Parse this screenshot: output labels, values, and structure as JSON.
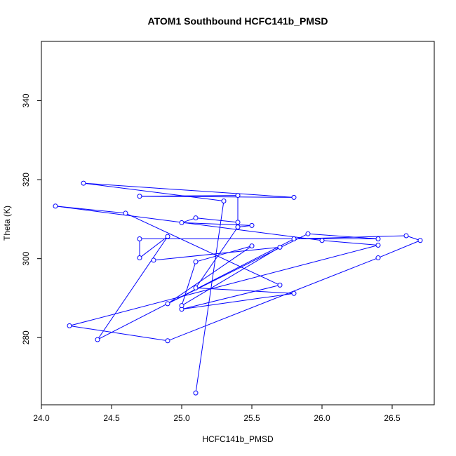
{
  "chart_data": {
    "type": "line",
    "title": "ATOM1 Southbound HCFC141b_PMSD",
    "xlabel": "HCFC141b_PMSD",
    "ylabel": "Theta (K)",
    "xlim": [
      24.0,
      26.8
    ],
    "ylim": [
      263.0,
      355.0
    ],
    "x_ticks": [
      24.0,
      24.5,
      25.0,
      25.5,
      26.0,
      26.5
    ],
    "x_tick_labels": [
      "24.0",
      "24.5",
      "25.0",
      "25.5",
      "26.0",
      "26.5"
    ],
    "y_ticks": [
      280,
      300,
      320,
      340
    ],
    "y_tick_labels": [
      "280",
      "300",
      "320",
      "340"
    ],
    "grid": false,
    "color": "#0000ff",
    "marker": "open-circle",
    "points": [
      {
        "x": 25.1,
        "y": 266.0
      },
      {
        "x": 25.3,
        "y": 314.6
      },
      {
        "x": 24.3,
        "y": 319.1
      },
      {
        "x": 25.8,
        "y": 315.5
      },
      {
        "x": 24.7,
        "y": 315.8
      },
      {
        "x": 25.4,
        "y": 316.0
      },
      {
        "x": 25.4,
        "y": 309.2
      },
      {
        "x": 25.1,
        "y": 310.3
      },
      {
        "x": 25.0,
        "y": 309.1
      },
      {
        "x": 25.5,
        "y": 308.4
      },
      {
        "x": 25.4,
        "y": 308.0
      },
      {
        "x": 25.1,
        "y": 292.6
      },
      {
        "x": 25.8,
        "y": 291.2
      },
      {
        "x": 25.0,
        "y": 287.2
      },
      {
        "x": 25.7,
        "y": 293.3
      },
      {
        "x": 24.6,
        "y": 311.5
      },
      {
        "x": 24.1,
        "y": 313.3
      },
      {
        "x": 26.0,
        "y": 304.6
      },
      {
        "x": 26.4,
        "y": 303.4
      },
      {
        "x": 24.2,
        "y": 283.0
      },
      {
        "x": 24.9,
        "y": 279.2
      },
      {
        "x": 26.4,
        "y": 300.2
      },
      {
        "x": 26.7,
        "y": 304.6
      },
      {
        "x": 26.6,
        "y": 305.8
      },
      {
        "x": 25.8,
        "y": 305.0
      },
      {
        "x": 24.4,
        "y": 279.5
      },
      {
        "x": 24.9,
        "y": 305.6
      },
      {
        "x": 24.7,
        "y": 300.2
      },
      {
        "x": 24.7,
        "y": 305.0
      },
      {
        "x": 26.4,
        "y": 305.0
      },
      {
        "x": 25.9,
        "y": 306.3
      },
      {
        "x": 24.9,
        "y": 288.6
      },
      {
        "x": 25.5,
        "y": 303.2
      },
      {
        "x": 25.1,
        "y": 299.2
      },
      {
        "x": 25.0,
        "y": 288.1
      },
      {
        "x": 25.7,
        "y": 302.9
      },
      {
        "x": 24.8,
        "y": 299.6
      }
    ]
  }
}
